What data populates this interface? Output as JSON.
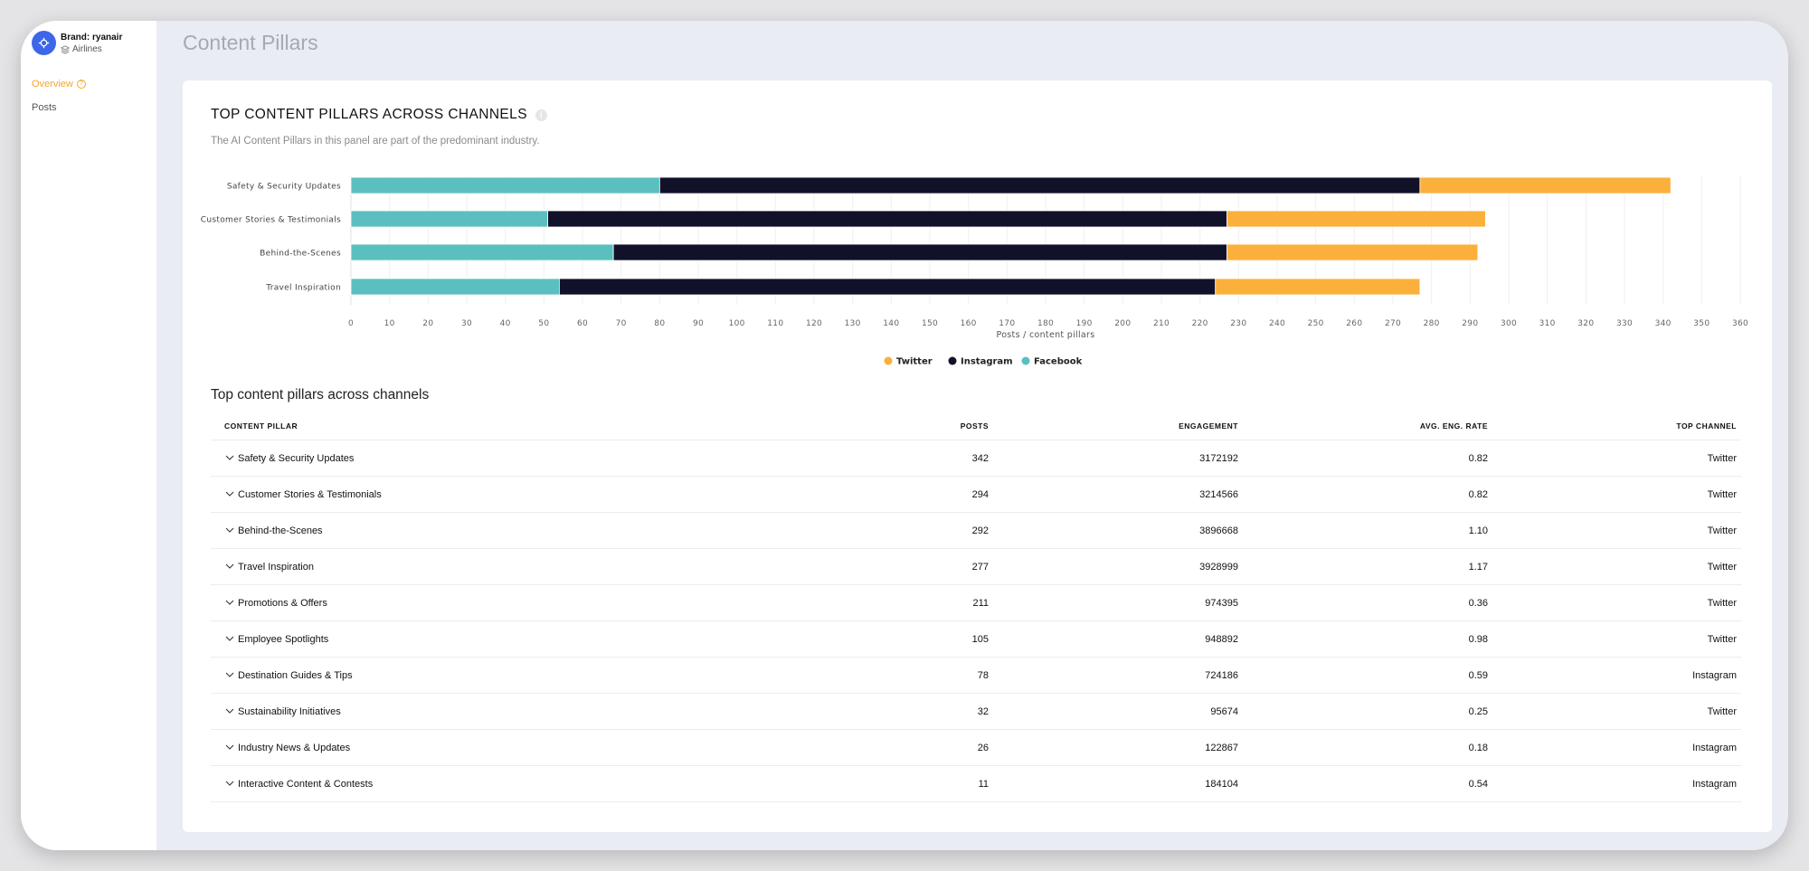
{
  "sidebar": {
    "brand_name": "Brand: ryanair",
    "brand_industry": "Airlines",
    "items": [
      {
        "label": "Overview",
        "active": true
      },
      {
        "label": "Posts",
        "active": false
      }
    ]
  },
  "page_title": "Content Pillars",
  "panel": {
    "title": "TOP CONTENT PILLARS ACROSS CHANNELS",
    "subtitle": "The AI Content Pillars in this panel are part of the predominant industry."
  },
  "colors": {
    "twitter": "#fbb03b",
    "instagram": "#11112a",
    "facebook": "#5bbfbf"
  },
  "chart_data": {
    "type": "bar",
    "orientation": "horizontal",
    "stacked": true,
    "categories": [
      "Safety & Security Updates",
      "Customer Stories & Testimonials",
      "Behind-the-Scenes",
      "Travel Inspiration"
    ],
    "series": [
      {
        "name": "Facebook",
        "values": [
          80,
          51,
          68,
          54
        ]
      },
      {
        "name": "Instagram",
        "values": [
          197,
          176,
          159,
          170
        ]
      },
      {
        "name": "Twitter",
        "values": [
          65,
          67,
          65,
          53
        ]
      }
    ],
    "xlabel": "Posts / content pillars",
    "xlim": [
      0,
      360
    ],
    "xticks": [
      0,
      10,
      20,
      30,
      40,
      50,
      60,
      70,
      80,
      90,
      100,
      110,
      120,
      130,
      140,
      150,
      160,
      170,
      180,
      190,
      200,
      210,
      220,
      230,
      240,
      250,
      260,
      270,
      280,
      290,
      300,
      310,
      320,
      330,
      340,
      350,
      360
    ],
    "grid": true,
    "legend": [
      "Twitter",
      "Instagram",
      "Facebook"
    ],
    "legend_position": "bottom-center"
  },
  "table": {
    "title": "Top content pillars across channels",
    "headers": [
      "CONTENT PILLAR",
      "POSTS",
      "ENGAGEMENT",
      "AVG. ENG. RATE",
      "TOP CHANNEL"
    ],
    "rows": [
      {
        "pillar": "Safety & Security Updates",
        "posts": "342",
        "engagement": "3172192",
        "rate": "0.82",
        "channel": "Twitter"
      },
      {
        "pillar": "Customer Stories & Testimonials",
        "posts": "294",
        "engagement": "3214566",
        "rate": "0.82",
        "channel": "Twitter"
      },
      {
        "pillar": "Behind-the-Scenes",
        "posts": "292",
        "engagement": "3896668",
        "rate": "1.10",
        "channel": "Twitter"
      },
      {
        "pillar": "Travel Inspiration",
        "posts": "277",
        "engagement": "3928999",
        "rate": "1.17",
        "channel": "Twitter"
      },
      {
        "pillar": "Promotions & Offers",
        "posts": "211",
        "engagement": "974395",
        "rate": "0.36",
        "channel": "Twitter"
      },
      {
        "pillar": "Employee Spotlights",
        "posts": "105",
        "engagement": "948892",
        "rate": "0.98",
        "channel": "Twitter"
      },
      {
        "pillar": "Destination Guides & Tips",
        "posts": "78",
        "engagement": "724186",
        "rate": "0.59",
        "channel": "Instagram"
      },
      {
        "pillar": "Sustainability Initiatives",
        "posts": "32",
        "engagement": "95674",
        "rate": "0.25",
        "channel": "Twitter"
      },
      {
        "pillar": "Industry News & Updates",
        "posts": "26",
        "engagement": "122867",
        "rate": "0.18",
        "channel": "Instagram"
      },
      {
        "pillar": "Interactive Content & Contests",
        "posts": "11",
        "engagement": "184104",
        "rate": "0.54",
        "channel": "Instagram"
      }
    ]
  }
}
